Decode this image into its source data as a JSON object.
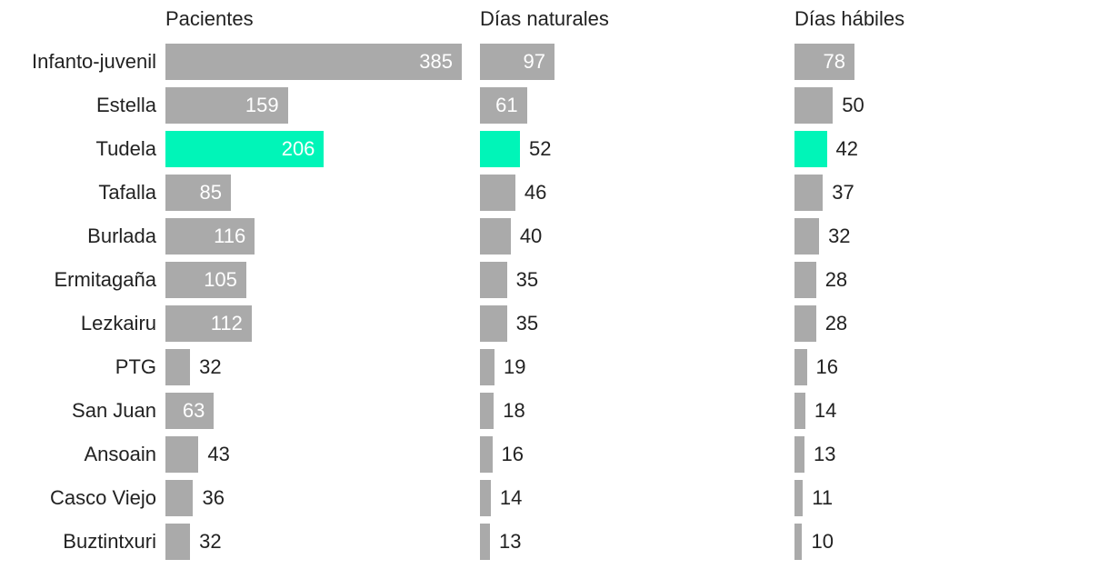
{
  "chart_data": {
    "type": "bar",
    "orientation": "horizontal",
    "categories": [
      "Infanto-juvenil",
      "Estella",
      "Tudela",
      "Tafalla",
      "Burlada",
      "Ermitagaña",
      "Lezkairu",
      "PTG",
      "San Juan",
      "Ansoain",
      "Casco Viejo",
      "Buztintxuri"
    ],
    "highlight_category": "Tudela",
    "colors": {
      "default": "#aaaaaa",
      "highlight": "#00f5b8"
    },
    "series": [
      {
        "name": "Pacientes",
        "values": [
          385,
          159,
          206,
          85,
          116,
          105,
          112,
          32,
          63,
          43,
          36,
          32
        ]
      },
      {
        "name": "Días naturales",
        "values": [
          97,
          61,
          52,
          46,
          40,
          35,
          35,
          19,
          18,
          16,
          14,
          13
        ]
      },
      {
        "name": "Días hábiles",
        "values": [
          78,
          50,
          42,
          37,
          32,
          28,
          28,
          16,
          14,
          13,
          11,
          10
        ]
      }
    ]
  }
}
